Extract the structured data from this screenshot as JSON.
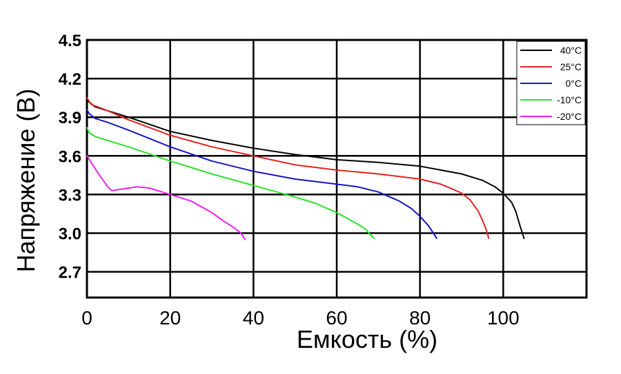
{
  "chart_data": {
    "type": "line",
    "title": "",
    "xlabel": "Емкость (%)",
    "ylabel": "Напряжение (В)",
    "xlim": [
      0,
      120
    ],
    "ylim": [
      2.5,
      4.5
    ],
    "x_ticks": [
      "0",
      "20",
      "40",
      "60",
      "80",
      "100"
    ],
    "y_ticks": [
      "4.5",
      "4.2",
      "3.9",
      "3.6",
      "3.3",
      "3.0",
      "2.7"
    ],
    "grid": true,
    "legend_position": "top-right",
    "series": [
      {
        "name": "40°C",
        "color": "#000000",
        "x": [
          0,
          2,
          5,
          10,
          20,
          30,
          40,
          50,
          60,
          70,
          80,
          90,
          95,
          98,
          100,
          102,
          103,
          104,
          105
        ],
        "y": [
          4.03,
          3.98,
          3.95,
          3.9,
          3.79,
          3.72,
          3.66,
          3.61,
          3.57,
          3.55,
          3.52,
          3.46,
          3.41,
          3.36,
          3.31,
          3.24,
          3.17,
          3.06,
          2.96
        ]
      },
      {
        "name": "25°C",
        "color": "#e8201c",
        "x": [
          0,
          1,
          5,
          10,
          20,
          30,
          40,
          50,
          60,
          70,
          80,
          85,
          88,
          90,
          92,
          94,
          95,
          96,
          96.5
        ],
        "y": [
          4.05,
          4.0,
          3.95,
          3.88,
          3.76,
          3.67,
          3.6,
          3.53,
          3.49,
          3.46,
          3.42,
          3.38,
          3.34,
          3.31,
          3.26,
          3.17,
          3.1,
          3.02,
          2.96
        ]
      },
      {
        "name": "0°C",
        "color": "#1414c8",
        "x": [
          0,
          0.5,
          2,
          5,
          10,
          20,
          30,
          40,
          50,
          60,
          65,
          70,
          75,
          78,
          80,
          82,
          83,
          84
        ],
        "y": [
          3.96,
          3.93,
          3.89,
          3.86,
          3.8,
          3.67,
          3.56,
          3.48,
          3.42,
          3.38,
          3.36,
          3.32,
          3.25,
          3.19,
          3.13,
          3.06,
          3.01,
          2.96
        ]
      },
      {
        "name": "-10°C",
        "color": "#27e327",
        "x": [
          0,
          0.5,
          2,
          5,
          10,
          20,
          30,
          40,
          50,
          55,
          60,
          65,
          67,
          68,
          69
        ],
        "y": [
          3.82,
          3.78,
          3.75,
          3.72,
          3.67,
          3.56,
          3.46,
          3.37,
          3.28,
          3.23,
          3.16,
          3.07,
          3.03,
          2.99,
          2.96
        ]
      },
      {
        "name": "-20°C",
        "color": "#f01ef0",
        "x": [
          0,
          1,
          3,
          5,
          6,
          8,
          12,
          15,
          20,
          25,
          30,
          33,
          35,
          37,
          38
        ],
        "y": [
          3.6,
          3.55,
          3.45,
          3.36,
          3.33,
          3.34,
          3.36,
          3.35,
          3.3,
          3.25,
          3.16,
          3.09,
          3.05,
          3.0,
          2.95
        ]
      }
    ]
  }
}
